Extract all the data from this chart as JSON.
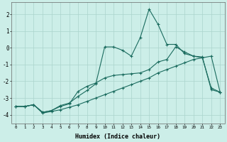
{
  "xlabel": "Humidex (Indice chaleur)",
  "background_color": "#cceee8",
  "grid_color": "#aad4cc",
  "line_color": "#1a6b5e",
  "xlim": [
    -0.5,
    23.5
  ],
  "ylim": [
    -4.5,
    2.7
  ],
  "yticks": [
    -4,
    -3,
    -2,
    -1,
    0,
    1,
    2
  ],
  "xtick_labels": [
    "0",
    "1",
    "2",
    "3",
    "4",
    "5",
    "6",
    "7",
    "8",
    "9",
    "10",
    "11",
    "12",
    "13",
    "14",
    "15",
    "16",
    "17",
    "18",
    "19",
    "20",
    "21",
    "22",
    "23"
  ],
  "line1_x": [
    0,
    1,
    2,
    3,
    4,
    5,
    6,
    7,
    8,
    9,
    10,
    11,
    12,
    13,
    14,
    15,
    16,
    17,
    18,
    19,
    20,
    21,
    22,
    23
  ],
  "line1_y": [
    -3.5,
    -3.5,
    -3.4,
    -3.9,
    -3.8,
    -3.7,
    -3.55,
    -3.4,
    -3.2,
    -3.0,
    -2.8,
    -2.6,
    -2.4,
    -2.2,
    -2.0,
    -1.8,
    -1.5,
    -1.3,
    -1.1,
    -0.9,
    -0.7,
    -0.6,
    -0.5,
    -2.65
  ],
  "line2_x": [
    0,
    1,
    2,
    3,
    4,
    5,
    6,
    7,
    8,
    9,
    10,
    11,
    12,
    13,
    14,
    15,
    16,
    17,
    18,
    19,
    20,
    21,
    22,
    23
  ],
  "line2_y": [
    -3.5,
    -3.5,
    -3.4,
    -3.85,
    -3.75,
    -3.5,
    -3.35,
    -2.6,
    -2.3,
    -2.1,
    -1.8,
    -1.65,
    -1.6,
    -1.55,
    -1.5,
    -1.3,
    -0.85,
    -0.7,
    0.05,
    -0.25,
    -0.5,
    -0.55,
    -2.5,
    -2.65
  ],
  "line3_x": [
    0,
    1,
    2,
    3,
    4,
    5,
    6,
    7,
    8,
    9,
    10,
    11,
    12,
    13,
    14,
    15,
    16,
    17,
    18,
    19,
    20,
    21,
    22,
    23
  ],
  "line3_y": [
    -3.5,
    -3.5,
    -3.4,
    -3.85,
    -3.75,
    -3.45,
    -3.3,
    -2.9,
    -2.55,
    -2.15,
    0.05,
    0.05,
    -0.15,
    -0.5,
    0.6,
    2.3,
    1.4,
    0.2,
    0.2,
    -0.35,
    -0.5,
    -0.6,
    -2.4,
    -2.65
  ]
}
